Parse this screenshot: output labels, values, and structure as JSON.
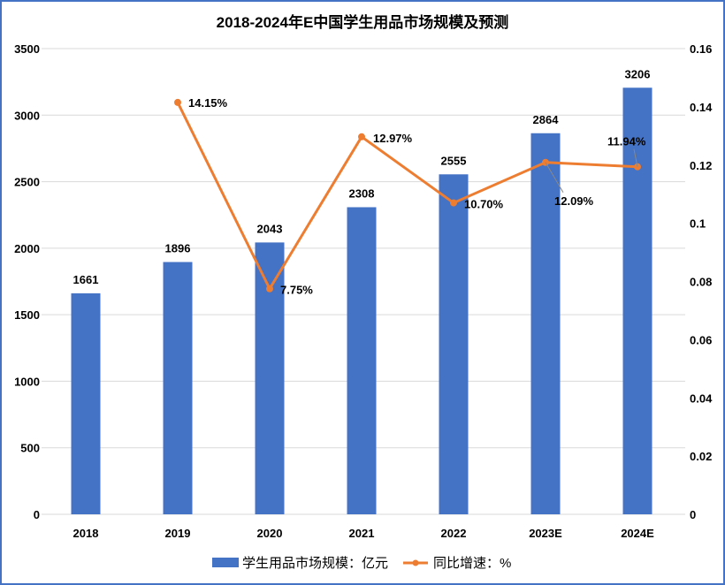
{
  "chart_data": {
    "type": "bar+line",
    "title": "2018-2024年E中国学生用品市场规模及预测",
    "categories": [
      "2018",
      "2019",
      "2020",
      "2021",
      "2022",
      "2023E",
      "2024E"
    ],
    "series": [
      {
        "name": "学生用品市场规模：亿元",
        "type": "bar",
        "axis": "left",
        "color": "#4472C4",
        "values": [
          1661,
          1896,
          2043,
          2308,
          2555,
          2864,
          3206
        ],
        "labels": [
          "1661",
          "1896",
          "2043",
          "2308",
          "2555",
          "2864",
          "3206"
        ]
      },
      {
        "name": "同比增速：%",
        "type": "line",
        "axis": "right",
        "color": "#ED7D31",
        "values": [
          null,
          0.1415,
          0.0775,
          0.1297,
          0.107,
          0.1209,
          0.1194
        ],
        "labels": [
          "",
          "14.15%",
          "7.75%",
          "12.97%",
          "10.70%",
          "12.09%",
          "11.94%"
        ]
      }
    ],
    "left_axis": {
      "ylim": [
        0,
        3500
      ],
      "ticks": [
        "0",
        "500",
        "1000",
        "1500",
        "2000",
        "2500",
        "3000",
        "3500"
      ]
    },
    "right_axis": {
      "ylim": [
        0,
        0.16
      ],
      "ticks": [
        "0",
        "0.02",
        "0.04",
        "0.06",
        "0.08",
        "0.1",
        "0.12",
        "0.14",
        "0.16"
      ]
    },
    "grid": true,
    "legend": "bottom"
  }
}
